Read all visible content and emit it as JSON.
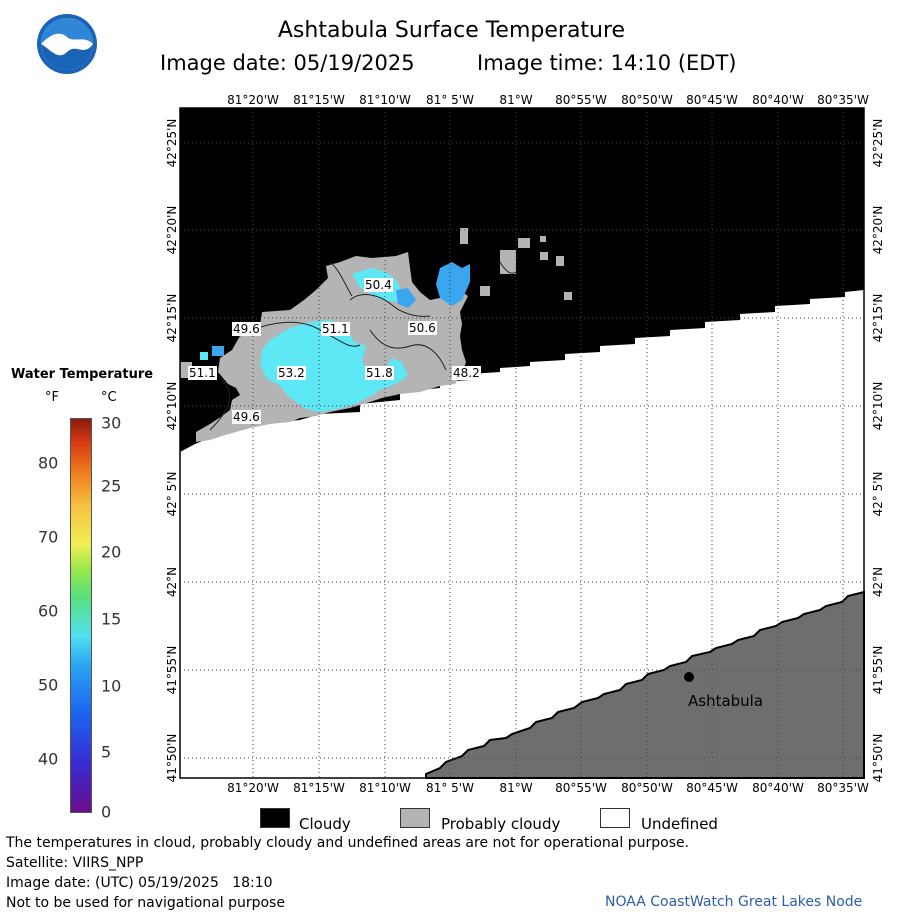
{
  "header": {
    "title": "Ashtabula Surface Temperature",
    "image_date": "Image date: 05/19/2025",
    "image_time": "Image time: 14:10 (EDT)"
  },
  "map": {
    "longitude_ticks": [
      "81°20'W",
      "81°15'W",
      "81°10'W",
      "81° 5'W",
      "81°W",
      "80°55'W",
      "80°50'W",
      "80°45'W",
      "80°40'W",
      "80°35'W"
    ],
    "latitude_ticks": [
      "42°25'N",
      "42°20'N",
      "42°15'N",
      "42°10'N",
      "42° 5'N",
      "42°N",
      "41°55'N",
      "41°50'N"
    ],
    "temperature_labels": [
      {
        "text": "50.4"
      },
      {
        "text": "49.6"
      },
      {
        "text": "51.1"
      },
      {
        "text": "50.6"
      },
      {
        "text": "51.1"
      },
      {
        "text": "53.2"
      },
      {
        "text": "51.8"
      },
      {
        "text": "48.2"
      },
      {
        "text": "49.6"
      }
    ],
    "city": "Ashtabula",
    "colors": {
      "cloudy": "#000000",
      "probably_cloudy": "#b4b4b4",
      "undefined": "#ffffff",
      "land": "#6e6e6e",
      "water_cyan": "#5ee8f5",
      "water_blue": "#3aa6f0"
    }
  },
  "legend": {
    "title": "Water Temperature",
    "unit_f": "°F",
    "unit_c": "°C",
    "f_ticks": [
      "80",
      "70",
      "60",
      "50",
      "40"
    ],
    "c_ticks": [
      "30",
      "25",
      "20",
      "15",
      "10",
      "5",
      "0"
    ],
    "categories": [
      {
        "label": "Cloudy",
        "color": "#000000"
      },
      {
        "label": "Probably cloudy",
        "color": "#b4b4b4"
      },
      {
        "label": "Undefined",
        "color": "#ffffff"
      }
    ]
  },
  "footer": {
    "disclaimer": "The temperatures in cloud, probably cloudy and undefined areas are not for operational purpose.",
    "satellite": "Satellite: VIIRS_NPP",
    "utc_date": "Image date: (UTC) 05/19/2025   18:10",
    "nav_warning": "Not to be used for navigational purpose",
    "credit": "NOAA CoastWatch Great Lakes Node"
  }
}
